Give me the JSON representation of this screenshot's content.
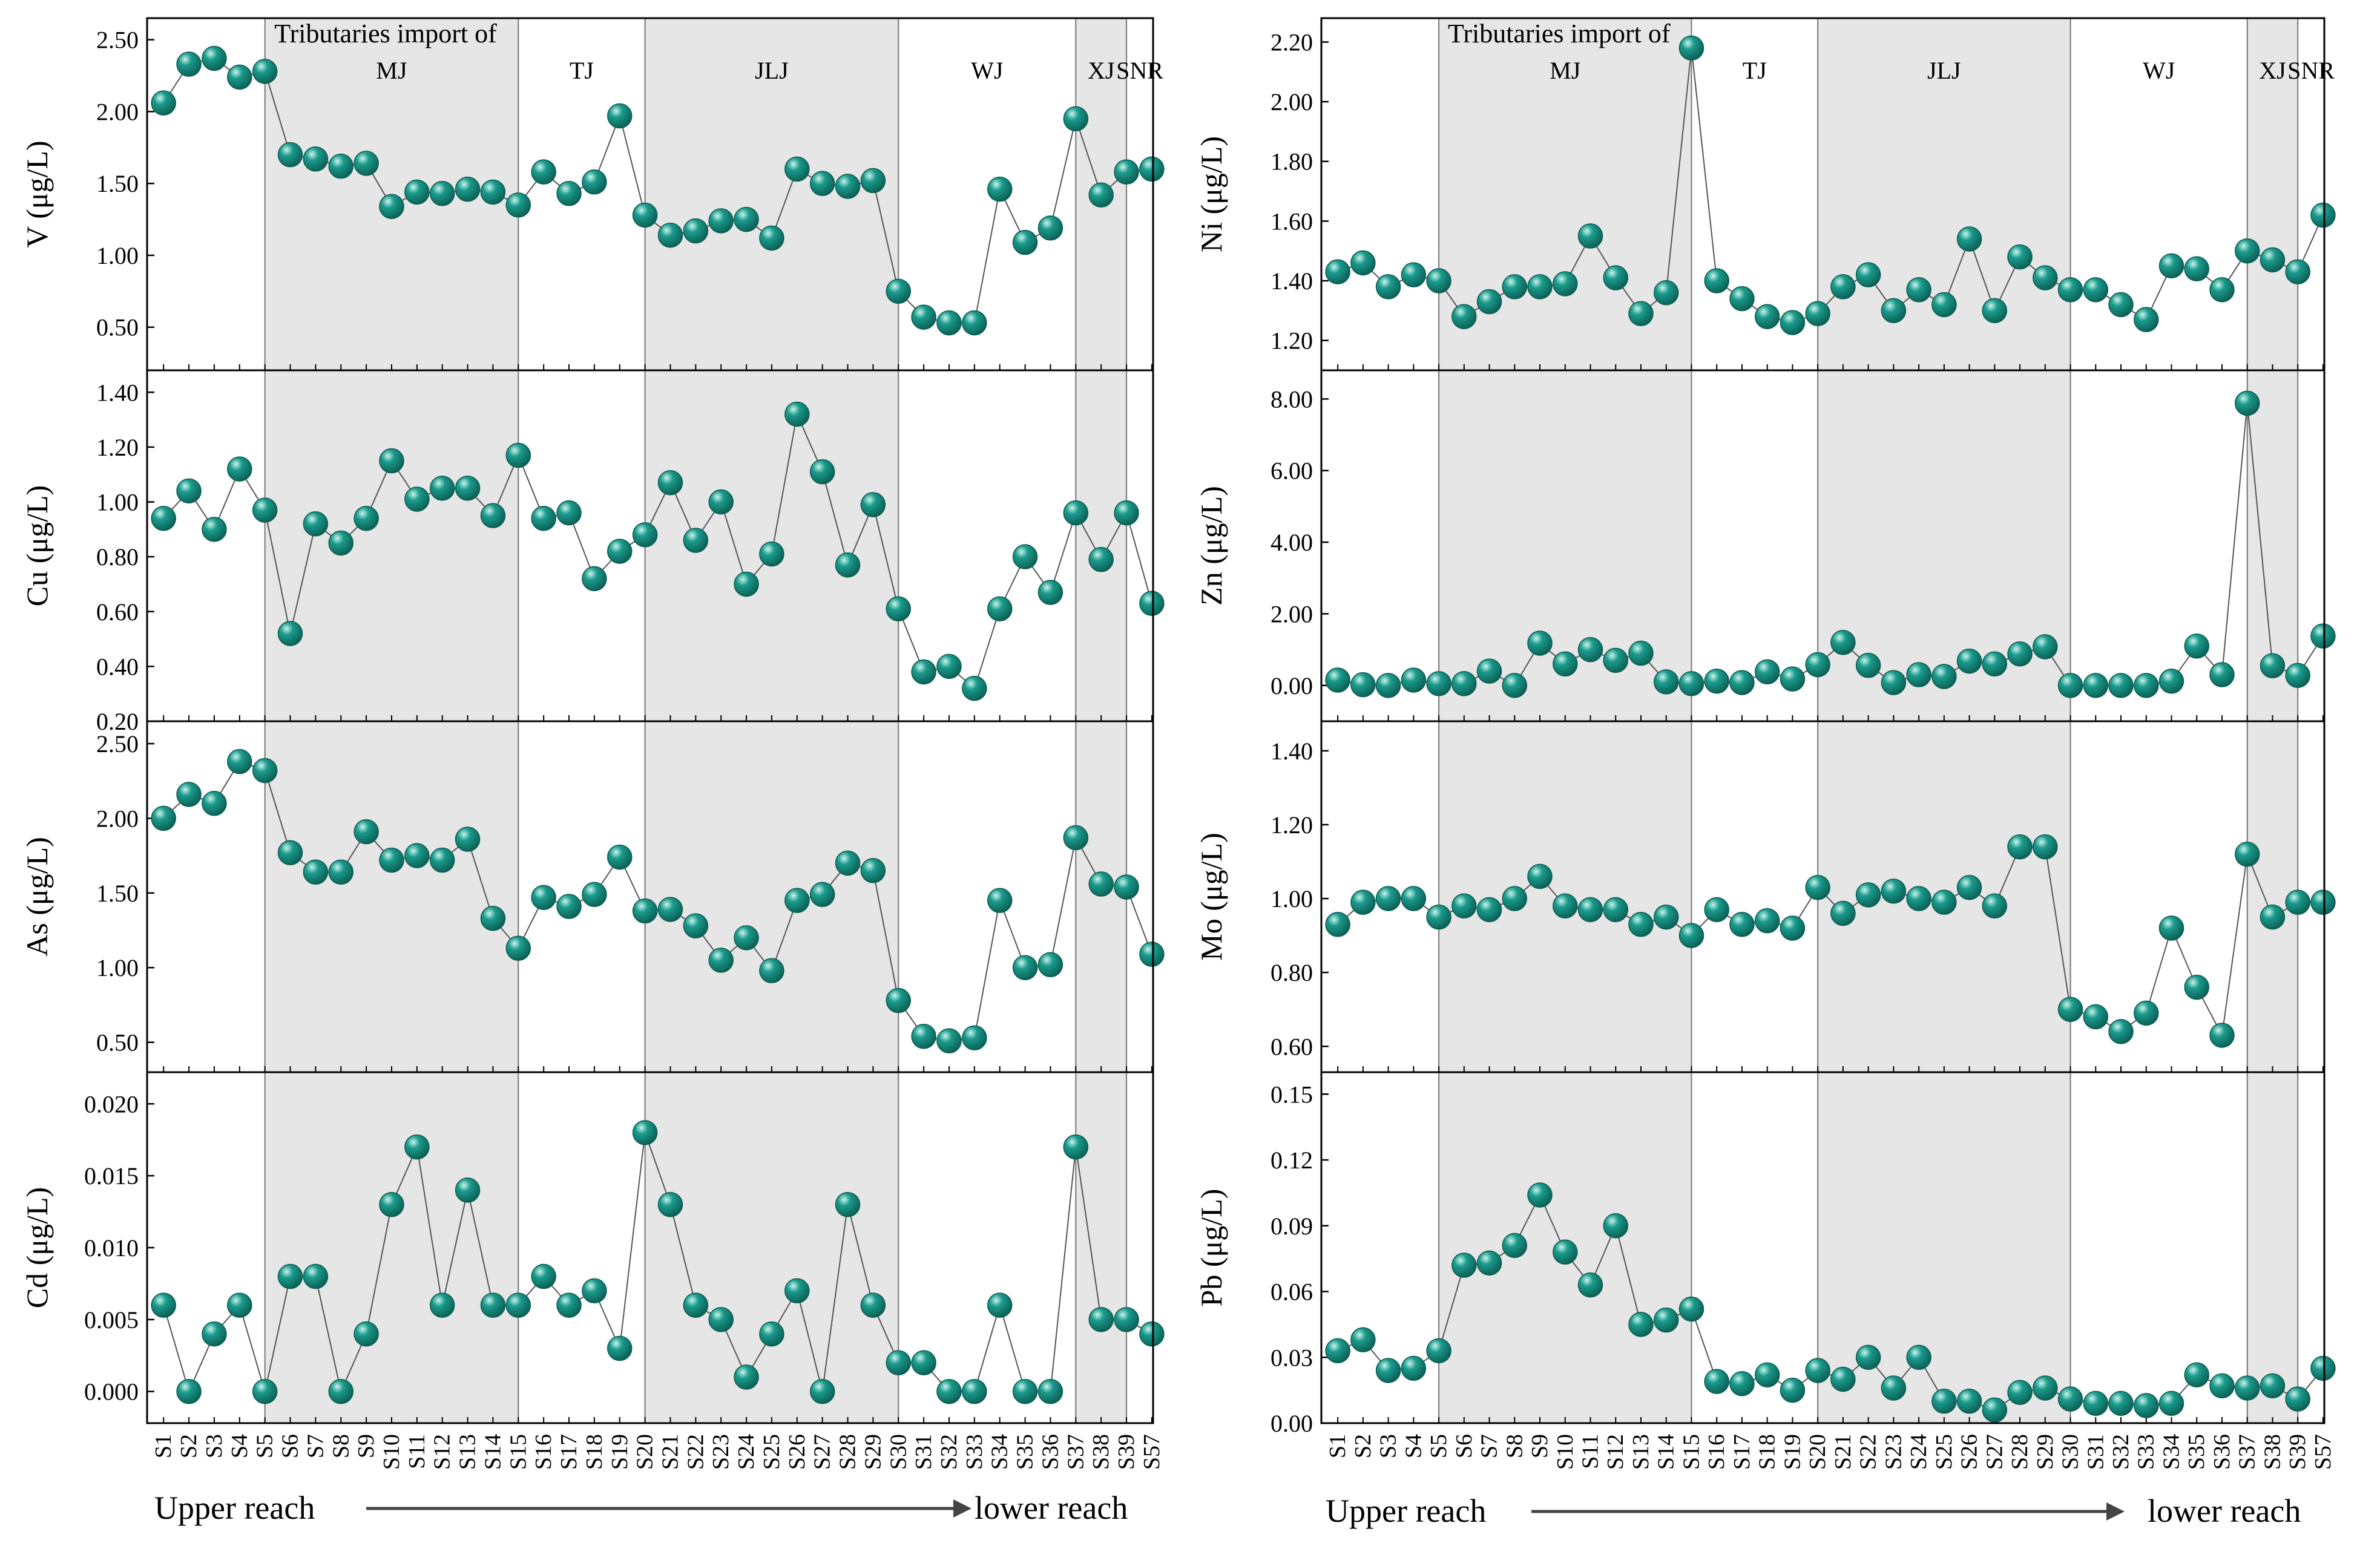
{
  "samples": [
    "S1",
    "S2",
    "S3",
    "S4",
    "S5",
    "S6",
    "S7",
    "S8",
    "S9",
    "S10",
    "S11",
    "S12",
    "S13",
    "S14",
    "S15",
    "S16",
    "S17",
    "S18",
    "S19",
    "S20",
    "S21",
    "S22",
    "S23",
    "S24",
    "S25",
    "S26",
    "S27",
    "S28",
    "S29",
    "S30",
    "S31",
    "S32",
    "S33",
    "S34",
    "S35",
    "S36",
    "S37",
    "S38",
    "S39",
    "S57"
  ],
  "regions": [
    {
      "label": "MJ",
      "start": "S5",
      "end": "S15",
      "shaded": true
    },
    {
      "label": "TJ",
      "start": "S15",
      "end": "S20",
      "shaded": false
    },
    {
      "label": "JLJ",
      "start": "S20",
      "end": "S30",
      "shaded": true
    },
    {
      "label": "WJ",
      "start": "S30",
      "end": "S37",
      "shaded": false
    },
    {
      "label": "XJ",
      "start": "S37",
      "end": "S39",
      "shaded": true
    },
    {
      "label": "SNR",
      "start": "S39",
      "end": "S57",
      "shaded": false
    }
  ],
  "tributaries_label": "Tributaries import of",
  "x_axis": {
    "upper_label": "Upper reach",
    "lower_label": "lower reach"
  },
  "colors": {
    "marker": "#1a9a8c",
    "marker_dark": "#0b5d52",
    "marker_light": "#c8f4ea",
    "shade": "#e6e6e6",
    "line": "#555555"
  },
  "chart_data": [
    {
      "type": "scatter",
      "column": 0,
      "row": 0,
      "ylabel": "V (μg/L)",
      "ylim": [
        0.2,
        2.65
      ],
      "yticks": [
        "0.50",
        "1.00",
        "1.50",
        "2.00",
        "2.50"
      ],
      "tick_values": [
        0.5,
        1.0,
        1.5,
        2.0,
        2.5
      ],
      "values": [
        2.06,
        2.33,
        2.37,
        2.24,
        2.28,
        1.7,
        1.67,
        1.62,
        1.64,
        1.34,
        1.44,
        1.43,
        1.46,
        1.44,
        1.35,
        1.58,
        1.43,
        1.51,
        1.97,
        1.28,
        1.14,
        1.17,
        1.24,
        1.25,
        1.12,
        1.6,
        1.5,
        1.48,
        1.52,
        0.75,
        0.57,
        0.53,
        0.53,
        1.46,
        1.09,
        1.19,
        1.95,
        1.42,
        1.58,
        1.6
      ]
    },
    {
      "type": "scatter",
      "column": 0,
      "row": 1,
      "ylabel": "Cu (μg/L)",
      "ylim": [
        0.2,
        1.48
      ],
      "yticks": [
        "0.20",
        "0.40",
        "0.60",
        "0.80",
        "1.00",
        "1.20",
        "1.40"
      ],
      "tick_values": [
        0.2,
        0.4,
        0.6,
        0.8,
        1.0,
        1.2,
        1.4
      ],
      "values": [
        0.94,
        1.04,
        0.9,
        1.12,
        0.97,
        0.52,
        0.92,
        0.85,
        0.94,
        1.15,
        1.01,
        1.05,
        1.05,
        0.95,
        1.17,
        0.94,
        0.96,
        0.72,
        0.82,
        0.88,
        1.07,
        0.86,
        1.0,
        0.7,
        0.81,
        1.32,
        1.11,
        0.77,
        0.99,
        0.61,
        0.38,
        0.4,
        0.32,
        0.61,
        0.8,
        0.67,
        0.96,
        0.79,
        0.96,
        0.63
      ]
    },
    {
      "type": "scatter",
      "column": 0,
      "row": 2,
      "ylabel": "As (μg/L)",
      "ylim": [
        0.3,
        2.65
      ],
      "yticks": [
        "0.50",
        "1.00",
        "1.50",
        "2.00",
        "2.50"
      ],
      "tick_values": [
        0.5,
        1.0,
        1.5,
        2.0,
        2.5
      ],
      "values": [
        2.0,
        2.16,
        2.1,
        2.38,
        2.32,
        1.77,
        1.64,
        1.64,
        1.91,
        1.72,
        1.75,
        1.72,
        1.86,
        1.33,
        1.13,
        1.47,
        1.41,
        1.49,
        1.74,
        1.38,
        1.39,
        1.28,
        1.05,
        1.2,
        0.98,
        1.45,
        1.49,
        1.7,
        1.65,
        0.78,
        0.54,
        0.51,
        0.53,
        1.45,
        1.0,
        1.02,
        1.87,
        1.56,
        1.54,
        1.09
      ]
    },
    {
      "type": "scatter",
      "column": 0,
      "row": 3,
      "ylabel": "Cd (μg/L)",
      "ylim": [
        -0.0022,
        0.0222
      ],
      "yticks": [
        "0.000",
        "0.005",
        "0.010",
        "0.015",
        "0.020"
      ],
      "tick_values": [
        0.0,
        0.005,
        0.01,
        0.015,
        0.02
      ],
      "values": [
        0.006,
        0.0,
        0.004,
        0.006,
        0.0,
        0.008,
        0.008,
        0.0,
        0.004,
        0.013,
        0.017,
        0.006,
        0.014,
        0.006,
        0.006,
        0.008,
        0.006,
        0.007,
        0.003,
        0.018,
        0.013,
        0.006,
        0.005,
        0.001,
        0.004,
        0.007,
        0.0,
        0.013,
        0.006,
        0.002,
        0.002,
        0.0,
        0.0,
        0.006,
        0.0,
        0.0,
        0.017,
        0.005,
        0.005,
        0.004
      ]
    },
    {
      "type": "scatter",
      "column": 1,
      "row": 0,
      "ylabel": "Ni (μg/L)",
      "ylim": [
        1.1,
        2.28
      ],
      "yticks": [
        "1.20",
        "1.40",
        "1.60",
        "1.80",
        "2.00",
        "2.20"
      ],
      "tick_values": [
        1.2,
        1.4,
        1.6,
        1.8,
        2.0,
        2.2
      ],
      "values": [
        1.43,
        1.46,
        1.38,
        1.42,
        1.4,
        1.28,
        1.33,
        1.38,
        1.38,
        1.39,
        1.55,
        1.41,
        1.29,
        1.36,
        2.18,
        1.4,
        1.34,
        1.28,
        1.26,
        1.29,
        1.38,
        1.42,
        1.3,
        1.37,
        1.32,
        1.54,
        1.3,
        1.48,
        1.41,
        1.37,
        1.37,
        1.32,
        1.27,
        1.45,
        1.44,
        1.37,
        1.5,
        1.47,
        1.43,
        1.62
      ]
    },
    {
      "type": "scatter",
      "column": 1,
      "row": 1,
      "ylabel": "Zn (μg/L)",
      "ylim": [
        -1.0,
        8.8
      ],
      "yticks": [
        "0.00",
        "2.00",
        "4.00",
        "6.00",
        "8.00"
      ],
      "tick_values": [
        0,
        2,
        4,
        6,
        8
      ],
      "values": [
        0.15,
        0.02,
        0.0,
        0.15,
        0.05,
        0.05,
        0.4,
        0.0,
        1.18,
        0.6,
        1.0,
        0.7,
        0.9,
        0.1,
        0.05,
        0.12,
        0.08,
        0.38,
        0.18,
        0.58,
        1.2,
        0.56,
        0.08,
        0.3,
        0.25,
        0.68,
        0.6,
        0.88,
        1.08,
        0.0,
        0.0,
        0.0,
        0.0,
        0.12,
        1.1,
        0.3,
        7.88,
        0.55,
        0.28,
        1.38
      ]
    },
    {
      "type": "scatter",
      "column": 1,
      "row": 2,
      "ylabel": "Mo (μg/L)",
      "ylim": [
        0.53,
        1.48
      ],
      "yticks": [
        "0.60",
        "0.80",
        "1.00",
        "1.20",
        "1.40"
      ],
      "tick_values": [
        0.6,
        0.8,
        1.0,
        1.2,
        1.4
      ],
      "values": [
        0.93,
        0.99,
        1.0,
        1.0,
        0.95,
        0.98,
        0.97,
        1.0,
        1.06,
        0.98,
        0.97,
        0.97,
        0.93,
        0.95,
        0.9,
        0.97,
        0.93,
        0.94,
        0.92,
        1.03,
        0.96,
        1.01,
        1.02,
        1.0,
        0.99,
        1.03,
        0.98,
        1.14,
        1.14,
        0.7,
        0.68,
        0.64,
        0.69,
        0.92,
        0.76,
        0.63,
        1.12,
        0.95,
        0.99,
        0.99
      ]
    },
    {
      "type": "scatter",
      "column": 1,
      "row": 3,
      "ylabel": "Pb (μg/L)",
      "ylim": [
        0.0,
        0.16
      ],
      "yticks": [
        "0.00",
        "0.03",
        "0.06",
        "0.09",
        "0.12",
        "0.15"
      ],
      "tick_values": [
        0,
        0.03,
        0.06,
        0.09,
        0.12,
        0.15
      ],
      "values": [
        0.033,
        0.038,
        0.024,
        0.025,
        0.033,
        0.072,
        0.073,
        0.081,
        0.104,
        0.078,
        0.063,
        0.09,
        0.045,
        0.047,
        0.052,
        0.019,
        0.018,
        0.022,
        0.015,
        0.024,
        0.02,
        0.03,
        0.016,
        0.03,
        0.01,
        0.01,
        0.006,
        0.014,
        0.016,
        0.011,
        0.009,
        0.009,
        0.008,
        0.009,
        0.022,
        0.017,
        0.016,
        0.017,
        0.011,
        0.025
      ]
    }
  ]
}
